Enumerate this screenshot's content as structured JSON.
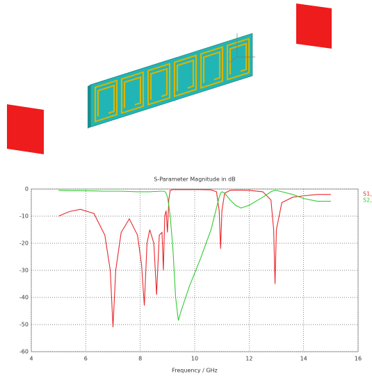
{
  "chart_data": {
    "type": "line",
    "title": "S-Parameter Magnitude in dB",
    "x_label": "Frequency / GHz",
    "x": [
      5,
      5.4,
      5.8,
      6.3,
      6.7,
      6.9,
      7.0,
      7.1,
      7.3,
      7.6,
      7.9,
      8.05,
      8.15,
      8.25,
      8.35,
      8.5,
      8.6,
      8.7,
      8.8,
      8.85,
      8.9,
      8.95,
      9.0,
      9.05,
      9.1,
      9.2,
      9.3,
      9.4,
      9.5,
      9.8,
      10.2,
      10.6,
      10.8,
      10.9,
      10.95,
      11.0,
      11.1,
      11.3,
      11.5,
      11.7,
      12.0,
      12.5,
      12.8,
      12.9,
      12.95,
      13.0,
      13.2,
      13.6,
      14.0,
      14.5,
      15.0
    ],
    "series": [
      {
        "name": "S1,",
        "color": "#e8262b",
        "values": [
          -10,
          -8.3,
          -7.5,
          -9,
          -17,
          -30,
          -51,
          -30,
          -16,
          -11,
          -17,
          -28,
          -43,
          -20,
          -15,
          -20,
          -39,
          -17,
          -16,
          -30,
          -10,
          -8,
          -16,
          -4,
          -0.5,
          -0.2,
          -0.2,
          -0.2,
          -0.2,
          -0.2,
          -0.2,
          -0.3,
          -1,
          -8,
          -22,
          -8,
          -1.5,
          -0.5,
          -0.4,
          -0.4,
          -0.5,
          -1,
          -4,
          -15,
          -35,
          -15,
          -5,
          -3,
          -2.5,
          -2,
          -2
        ]
      },
      {
        "name": "S2,",
        "color": "#2ecc2e",
        "values": [
          -0.5,
          -0.6,
          -0.6,
          -0.7,
          -0.8,
          -0.8,
          -0.8,
          -0.8,
          -0.8,
          -0.9,
          -1,
          -1,
          -1,
          -1,
          -1,
          -0.9,
          -0.9,
          -0.8,
          -0.8,
          -0.8,
          -0.9,
          -1.5,
          -3,
          -6,
          -10,
          -22,
          -40,
          -48.5,
          -45,
          -36,
          -26,
          -15,
          -7,
          -3,
          -1.5,
          -1,
          -1.5,
          -4,
          -6,
          -7,
          -6,
          -3,
          -1,
          -0.6,
          -0.5,
          -0.5,
          -1,
          -2,
          -3.5,
          -4.5,
          -4.5
        ]
      }
    ],
    "xlim": [
      4,
      16
    ],
    "xticks": [
      4,
      6,
      8,
      10,
      12,
      14,
      16
    ],
    "ylim": [
      -60,
      0
    ],
    "yticks": [
      0,
      -10,
      -20,
      -30,
      -40,
      -50,
      -60
    ],
    "grid": true
  }
}
